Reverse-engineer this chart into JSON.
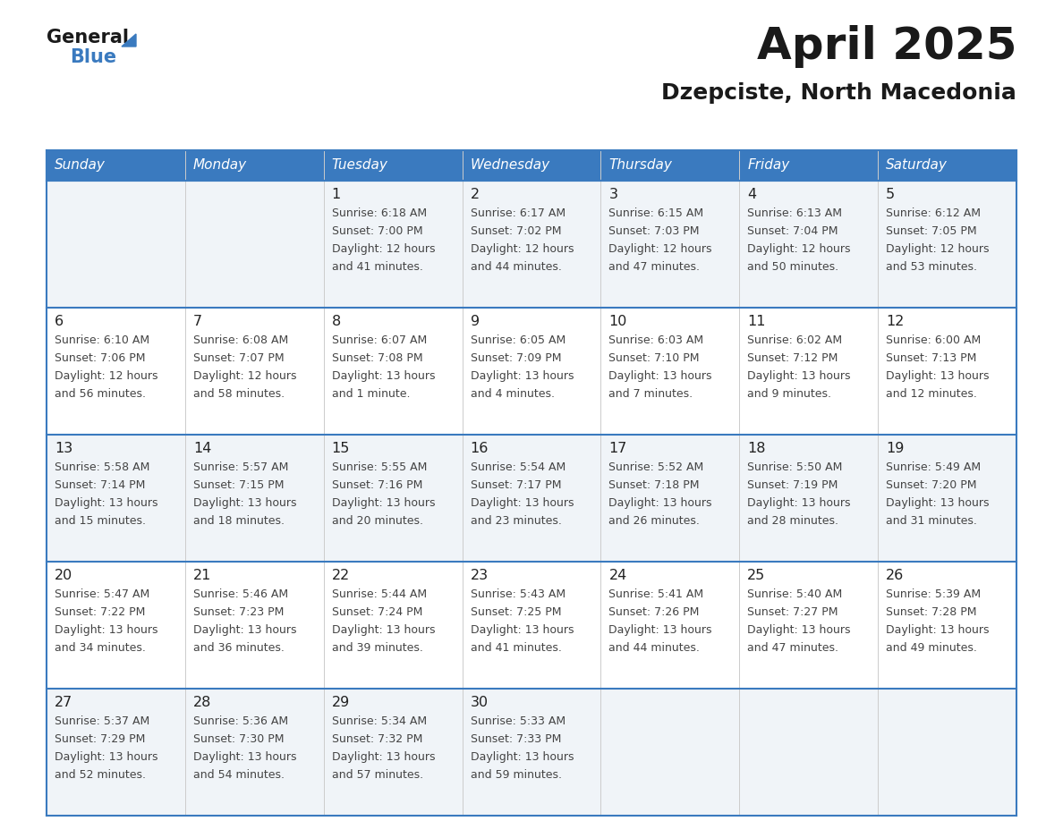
{
  "title": "April 2025",
  "subtitle": "Dzepciste, North Macedonia",
  "days_of_week": [
    "Sunday",
    "Monday",
    "Tuesday",
    "Wednesday",
    "Thursday",
    "Friday",
    "Saturday"
  ],
  "header_bg": "#3a7abf",
  "header_text": "#ffffff",
  "row_bg_even": "#f0f4f8",
  "row_bg_odd": "#ffffff",
  "border_color": "#3a7abf",
  "title_color": "#1a1a1a",
  "subtitle_color": "#1a1a1a",
  "day_number_color": "#222222",
  "cell_text_color": "#444444",
  "logo_general_color": "#1a1a1a",
  "logo_blue_color": "#3a7abf",
  "logo_triangle_color": "#3a7abf",
  "calendar_data": [
    [
      {
        "day": "",
        "sunrise": "",
        "sunset": "",
        "daylight": ""
      },
      {
        "day": "",
        "sunrise": "",
        "sunset": "",
        "daylight": ""
      },
      {
        "day": "1",
        "sunrise": "Sunrise: 6:18 AM",
        "sunset": "Sunset: 7:00 PM",
        "daylight": "Daylight: 12 hours\nand 41 minutes."
      },
      {
        "day": "2",
        "sunrise": "Sunrise: 6:17 AM",
        "sunset": "Sunset: 7:02 PM",
        "daylight": "Daylight: 12 hours\nand 44 minutes."
      },
      {
        "day": "3",
        "sunrise": "Sunrise: 6:15 AM",
        "sunset": "Sunset: 7:03 PM",
        "daylight": "Daylight: 12 hours\nand 47 minutes."
      },
      {
        "day": "4",
        "sunrise": "Sunrise: 6:13 AM",
        "sunset": "Sunset: 7:04 PM",
        "daylight": "Daylight: 12 hours\nand 50 minutes."
      },
      {
        "day": "5",
        "sunrise": "Sunrise: 6:12 AM",
        "sunset": "Sunset: 7:05 PM",
        "daylight": "Daylight: 12 hours\nand 53 minutes."
      }
    ],
    [
      {
        "day": "6",
        "sunrise": "Sunrise: 6:10 AM",
        "sunset": "Sunset: 7:06 PM",
        "daylight": "Daylight: 12 hours\nand 56 minutes."
      },
      {
        "day": "7",
        "sunrise": "Sunrise: 6:08 AM",
        "sunset": "Sunset: 7:07 PM",
        "daylight": "Daylight: 12 hours\nand 58 minutes."
      },
      {
        "day": "8",
        "sunrise": "Sunrise: 6:07 AM",
        "sunset": "Sunset: 7:08 PM",
        "daylight": "Daylight: 13 hours\nand 1 minute."
      },
      {
        "day": "9",
        "sunrise": "Sunrise: 6:05 AM",
        "sunset": "Sunset: 7:09 PM",
        "daylight": "Daylight: 13 hours\nand 4 minutes."
      },
      {
        "day": "10",
        "sunrise": "Sunrise: 6:03 AM",
        "sunset": "Sunset: 7:10 PM",
        "daylight": "Daylight: 13 hours\nand 7 minutes."
      },
      {
        "day": "11",
        "sunrise": "Sunrise: 6:02 AM",
        "sunset": "Sunset: 7:12 PM",
        "daylight": "Daylight: 13 hours\nand 9 minutes."
      },
      {
        "day": "12",
        "sunrise": "Sunrise: 6:00 AM",
        "sunset": "Sunset: 7:13 PM",
        "daylight": "Daylight: 13 hours\nand 12 minutes."
      }
    ],
    [
      {
        "day": "13",
        "sunrise": "Sunrise: 5:58 AM",
        "sunset": "Sunset: 7:14 PM",
        "daylight": "Daylight: 13 hours\nand 15 minutes."
      },
      {
        "day": "14",
        "sunrise": "Sunrise: 5:57 AM",
        "sunset": "Sunset: 7:15 PM",
        "daylight": "Daylight: 13 hours\nand 18 minutes."
      },
      {
        "day": "15",
        "sunrise": "Sunrise: 5:55 AM",
        "sunset": "Sunset: 7:16 PM",
        "daylight": "Daylight: 13 hours\nand 20 minutes."
      },
      {
        "day": "16",
        "sunrise": "Sunrise: 5:54 AM",
        "sunset": "Sunset: 7:17 PM",
        "daylight": "Daylight: 13 hours\nand 23 minutes."
      },
      {
        "day": "17",
        "sunrise": "Sunrise: 5:52 AM",
        "sunset": "Sunset: 7:18 PM",
        "daylight": "Daylight: 13 hours\nand 26 minutes."
      },
      {
        "day": "18",
        "sunrise": "Sunrise: 5:50 AM",
        "sunset": "Sunset: 7:19 PM",
        "daylight": "Daylight: 13 hours\nand 28 minutes."
      },
      {
        "day": "19",
        "sunrise": "Sunrise: 5:49 AM",
        "sunset": "Sunset: 7:20 PM",
        "daylight": "Daylight: 13 hours\nand 31 minutes."
      }
    ],
    [
      {
        "day": "20",
        "sunrise": "Sunrise: 5:47 AM",
        "sunset": "Sunset: 7:22 PM",
        "daylight": "Daylight: 13 hours\nand 34 minutes."
      },
      {
        "day": "21",
        "sunrise": "Sunrise: 5:46 AM",
        "sunset": "Sunset: 7:23 PM",
        "daylight": "Daylight: 13 hours\nand 36 minutes."
      },
      {
        "day": "22",
        "sunrise": "Sunrise: 5:44 AM",
        "sunset": "Sunset: 7:24 PM",
        "daylight": "Daylight: 13 hours\nand 39 minutes."
      },
      {
        "day": "23",
        "sunrise": "Sunrise: 5:43 AM",
        "sunset": "Sunset: 7:25 PM",
        "daylight": "Daylight: 13 hours\nand 41 minutes."
      },
      {
        "day": "24",
        "sunrise": "Sunrise: 5:41 AM",
        "sunset": "Sunset: 7:26 PM",
        "daylight": "Daylight: 13 hours\nand 44 minutes."
      },
      {
        "day": "25",
        "sunrise": "Sunrise: 5:40 AM",
        "sunset": "Sunset: 7:27 PM",
        "daylight": "Daylight: 13 hours\nand 47 minutes."
      },
      {
        "day": "26",
        "sunrise": "Sunrise: 5:39 AM",
        "sunset": "Sunset: 7:28 PM",
        "daylight": "Daylight: 13 hours\nand 49 minutes."
      }
    ],
    [
      {
        "day": "27",
        "sunrise": "Sunrise: 5:37 AM",
        "sunset": "Sunset: 7:29 PM",
        "daylight": "Daylight: 13 hours\nand 52 minutes."
      },
      {
        "day": "28",
        "sunrise": "Sunrise: 5:36 AM",
        "sunset": "Sunset: 7:30 PM",
        "daylight": "Daylight: 13 hours\nand 54 minutes."
      },
      {
        "day": "29",
        "sunrise": "Sunrise: 5:34 AM",
        "sunset": "Sunset: 7:32 PM",
        "daylight": "Daylight: 13 hours\nand 57 minutes."
      },
      {
        "day": "30",
        "sunrise": "Sunrise: 5:33 AM",
        "sunset": "Sunset: 7:33 PM",
        "daylight": "Daylight: 13 hours\nand 59 minutes."
      },
      {
        "day": "",
        "sunrise": "",
        "sunset": "",
        "daylight": ""
      },
      {
        "day": "",
        "sunrise": "",
        "sunset": "",
        "daylight": ""
      },
      {
        "day": "",
        "sunrise": "",
        "sunset": "",
        "daylight": ""
      }
    ]
  ]
}
